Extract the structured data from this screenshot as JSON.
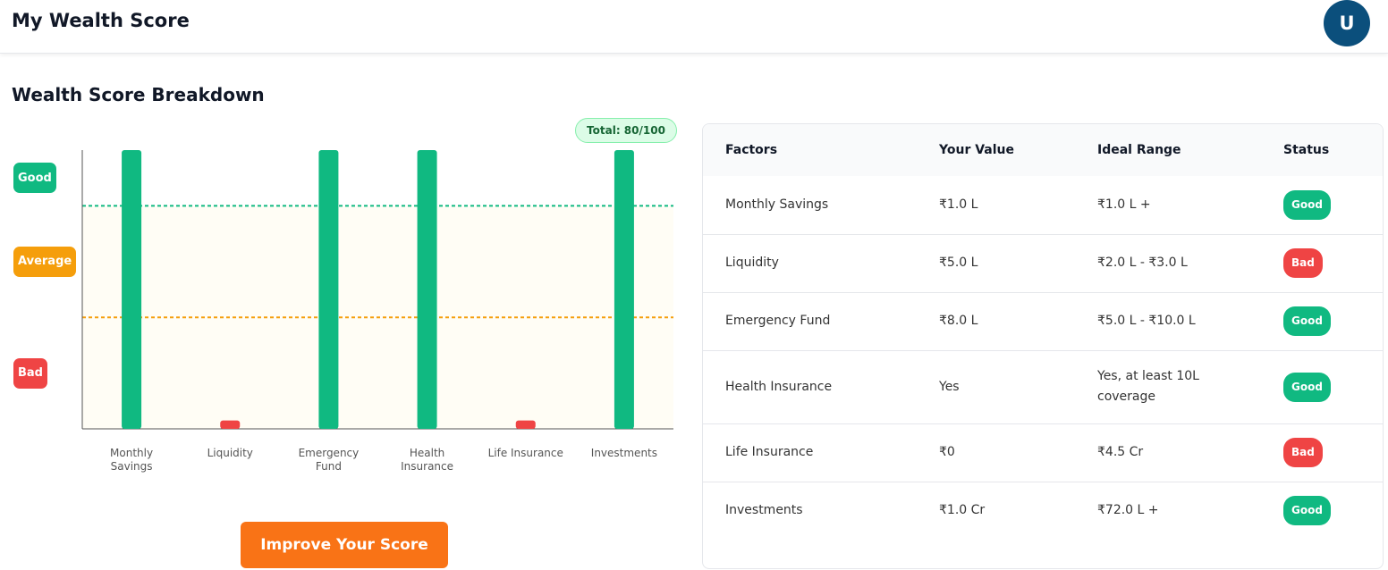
{
  "header": {
    "title": "My Wealth Score",
    "avatar": "U"
  },
  "section_title": "Wealth Score Breakdown",
  "total_badge": "Total: 80/100",
  "chart_data": {
    "type": "bar",
    "categories": [
      "Monthly Savings",
      "Liquidity",
      "Emergency Fund",
      "Health Insurance",
      "Life Insurance",
      "Investments"
    ],
    "values": [
      100,
      3,
      100,
      100,
      3,
      100
    ],
    "colors": [
      "#10b981",
      "#ef4444",
      "#10b981",
      "#10b981",
      "#ef4444",
      "#10b981"
    ],
    "ylim": [
      0,
      100
    ],
    "zones": [
      {
        "label": "Good",
        "from": 80,
        "to": 100,
        "color": "#10b981"
      },
      {
        "label": "Average",
        "from": 40,
        "to": 80,
        "color": "#f59e0b"
      },
      {
        "label": "Bad",
        "from": 0,
        "to": 40,
        "color": "#ef4444"
      }
    ]
  },
  "table": {
    "columns": [
      "Factors",
      "Your Value",
      "Ideal Range",
      "Status"
    ],
    "rows": [
      [
        "Monthly Savings",
        "₹1.0 L",
        "₹1.0 L +",
        "Good"
      ],
      [
        "Liquidity",
        "₹5.0 L",
        "₹2.0 L - ₹3.0 L",
        "Bad"
      ],
      [
        "Emergency Fund",
        "₹8.0 L",
        "₹5.0 L - ₹10.0 L",
        "Good"
      ],
      [
        "Health Insurance",
        "Yes",
        "Yes, at least 10L coverage",
        "Good"
      ],
      [
        "Life Insurance",
        "₹0",
        "₹4.5 Cr",
        "Bad"
      ],
      [
        "Investments",
        "₹1.0 Cr",
        "₹72.0 L +",
        "Good"
      ]
    ]
  },
  "button": "Improve Your Score"
}
